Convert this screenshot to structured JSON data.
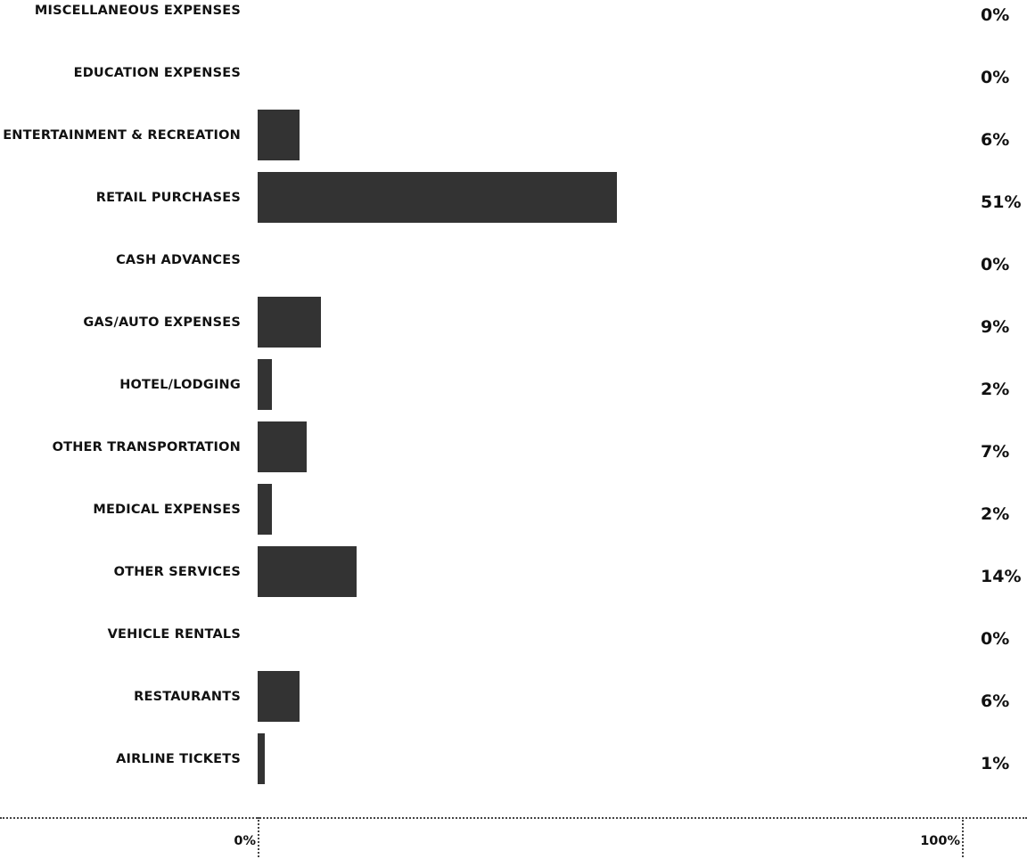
{
  "chart_data": {
    "type": "bar",
    "orientation": "horizontal",
    "categories": [
      "MISCELLANEOUS EXPENSES",
      "EDUCATION EXPENSES",
      "ENTERTAINMENT & RECREATION",
      "RETAIL PURCHASES",
      "CASH ADVANCES",
      "GAS/AUTO EXPENSES",
      "HOTEL/LODGING",
      "OTHER TRANSPORTATION",
      "MEDICAL EXPENSES",
      "OTHER SERVICES",
      "VEHICLE RENTALS",
      "RESTAURANTS",
      "AIRLINE TICKETS"
    ],
    "values": [
      0,
      0,
      6,
      51,
      0,
      9,
      2,
      7,
      2,
      14,
      0,
      6,
      1
    ],
    "value_labels": [
      "0%",
      "0%",
      "6%",
      "51%",
      "0%",
      "9%",
      "2%",
      "7%",
      "2%",
      "14%",
      "0%",
      "6%",
      "1%"
    ],
    "xlim": [
      0,
      100
    ],
    "x_tick_labels": [
      "0%",
      "100%"
    ],
    "title": "",
    "xlabel": "",
    "ylabel": "",
    "grid": false,
    "colors": {
      "bar": "#333333",
      "text": "#111111",
      "axis": "#444444"
    }
  }
}
